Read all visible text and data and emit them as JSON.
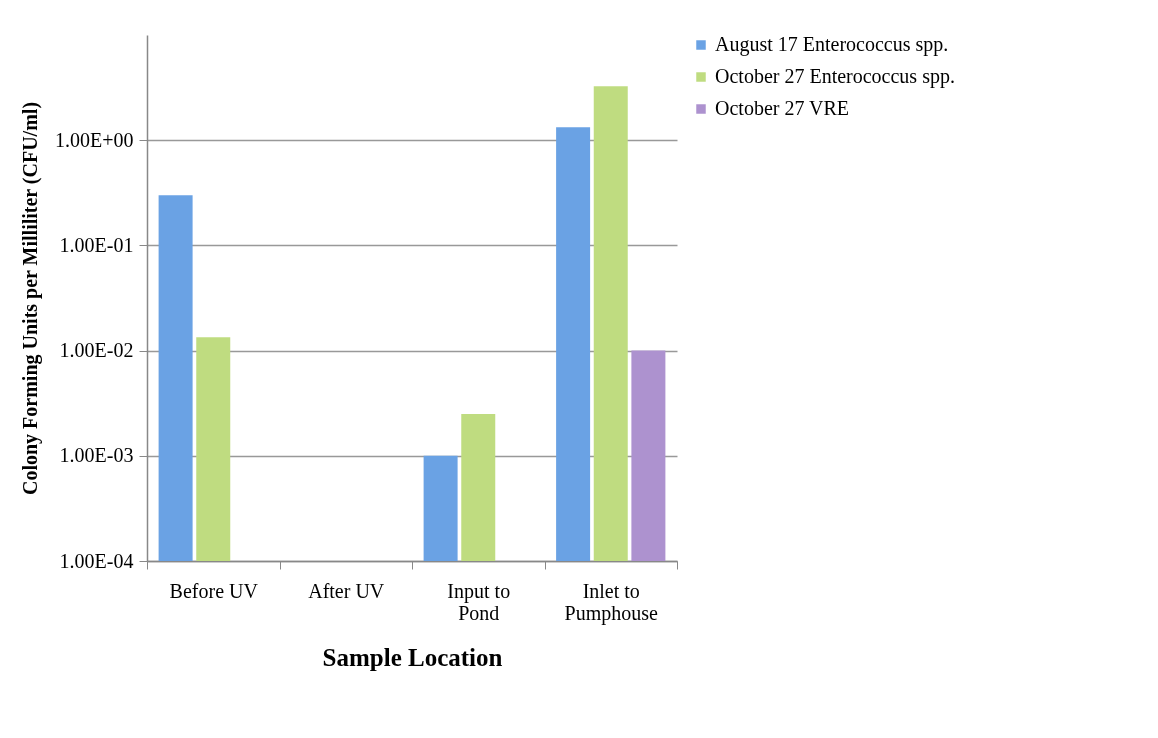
{
  "chart_data": {
    "type": "bar",
    "xlabel": "Sample Location",
    "ylabel": "Colony Forming Units per Milliliter (CFU/ml)",
    "categories": [
      "Before UV",
      "After UV",
      "Input to Pond",
      "Inlet to Pumphouse"
    ],
    "series": [
      {
        "name": "August 17 Enterococcus spp.",
        "color": "#6aa2e4",
        "values": [
          0.3,
          null,
          0.001,
          1.33
        ]
      },
      {
        "name": "October 27 Enterococcus spp.",
        "color": "#bfdc80",
        "values": [
          0.0134,
          null,
          0.0025,
          3.26
        ]
      },
      {
        "name": "October 27 VRE",
        "color": "#ad92cf",
        "values": [
          null,
          null,
          null,
          0.01
        ]
      }
    ],
    "log": true,
    "ylim": [
      0.0001,
      10
    ],
    "yticks": [
      {
        "value": 0.0001,
        "label": "1.00E-04"
      },
      {
        "value": 0.001,
        "label": "1.00E-03"
      },
      {
        "value": 0.01,
        "label": "1.00E-02"
      },
      {
        "value": 0.1,
        "label": "1.00E-01"
      },
      {
        "value": 1,
        "label": "1.00E+00"
      }
    ],
    "grid": "y",
    "legend": "right"
  }
}
